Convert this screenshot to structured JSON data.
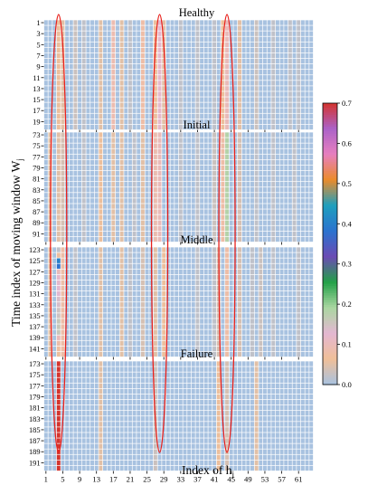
{
  "chart_data": {
    "type": "heatmap",
    "xlabel": "Index of h",
    "xlabel_sub": "j",
    "ylabel": "Time index of moving window W",
    "ylabel_sub": "j",
    "x_ticks": [
      "1",
      "5",
      "9",
      "13",
      "17",
      "21",
      "25",
      "29",
      "33",
      "37",
      "41",
      "45",
      "49",
      "53",
      "57",
      "61"
    ],
    "n_columns": 64,
    "colorbar": {
      "ticks": [
        "0.7",
        "0.6",
        "0.5",
        "0.4",
        "0.3",
        "0.2",
        "0.1",
        "0.0"
      ],
      "range": [
        0,
        0.7
      ],
      "colors": [
        "#a8c2e0",
        "#f0bf98",
        "#e4b7d2",
        "#aad7a1",
        "#23a048",
        "#6b4bb4",
        "#2b73cf",
        "#1e9fbe",
        "#eb8b2b",
        "#e77fbf",
        "#ab62c8",
        "#d4342d"
      ]
    },
    "panels": [
      {
        "title": "Healthy",
        "row_start": 1,
        "rows": 20,
        "y_ticks": [
          "1",
          "3",
          "5",
          "7",
          "9",
          "11",
          "13",
          "15",
          "17",
          "19"
        ],
        "columns": {
          "4": 0.06,
          "5": 0.05,
          "8": 0.03,
          "10": 0.02,
          "14": 0.05,
          "17": 0.09,
          "19": 0.05,
          "21": 0.02,
          "24": 0.08,
          "27": 0.06,
          "28": 0.12,
          "29": 0.05,
          "33": 0.02,
          "37": 0.02,
          "41": 0.02,
          "43": 0.06,
          "44": 0.1,
          "47": 0.05,
          "51": 0.03,
          "55": 0.02,
          "59": 0.02,
          "61": 0.02
        }
      },
      {
        "title": "Initial",
        "row_start": 73,
        "rows": 20,
        "y_ticks": [
          "73",
          "75",
          "77",
          "79",
          "81",
          "83",
          "85",
          "87",
          "89",
          "91"
        ],
        "columns": {
          "2": 0.05,
          "4": 0.05,
          "5": 0.04,
          "10": 0.02,
          "14": 0.06,
          "17": 0.05,
          "19": 0.05,
          "22": 0.02,
          "24": 0.05,
          "27": 0.09,
          "28": 0.1,
          "33": 0.02,
          "37": 0.02,
          "41": 0.03,
          "43": 0.08,
          "44": 0.18,
          "47": 0.04,
          "51": 0.02,
          "55": 0.02,
          "60": 0.02
        }
      },
      {
        "title": "Middle",
        "row_start": 123,
        "rows": 20,
        "y_ticks": [
          "123",
          "125",
          "127",
          "129",
          "131",
          "133",
          "135",
          "137",
          "139",
          "141"
        ],
        "columns": {
          "2": 0.05,
          "4": 0.1,
          "5": 0.08,
          "8": 0.02,
          "14": 0.05,
          "19": 0.05,
          "21": 0.02,
          "24": 0.04,
          "27": 0.05,
          "29": 0.06,
          "37": 0.02,
          "41": 0.02,
          "42": 0.04,
          "44": 0.08,
          "47": 0.04,
          "50": 0.02,
          "52": 0.03,
          "55": 0.02,
          "61": 0.02
        },
        "hot_column": 4,
        "hot_values": [
          0.02,
          0.07,
          0.4,
          0.38,
          0.1,
          0.12,
          0.12,
          0.13,
          0.13,
          0.14,
          0.14,
          0.15,
          0.15,
          0.16,
          0.16,
          0.16,
          0.1,
          0.08,
          0.07,
          0.06
        ]
      },
      {
        "title": "Failure",
        "row_start": 173,
        "rows": 20,
        "y_ticks": [
          "173",
          "175",
          "177",
          "179",
          "181",
          "183",
          "185",
          "187",
          "189",
          "191"
        ],
        "columns": {
          "14": 0.05,
          "27": 0.03,
          "42": 0.06,
          "44": 0.04,
          "51": 0.05
        },
        "hot_column": 4,
        "hot_values": [
          0.7,
          0.7,
          0.7,
          0.7,
          0.7,
          0.7,
          0.7,
          0.7,
          0.7,
          0.7,
          0.7,
          0.7,
          0.7,
          0.7,
          0.7,
          0.7,
          0.7,
          0.7,
          0.7,
          0.7
        ]
      }
    ],
    "highlights": [
      {
        "column": 4,
        "shape": "ellipse",
        "color": "#e8201b"
      },
      {
        "column": 28,
        "shape": "ellipse",
        "color": "#e8201b"
      },
      {
        "column": 44,
        "shape": "ellipse",
        "color": "#e8201b"
      }
    ]
  }
}
